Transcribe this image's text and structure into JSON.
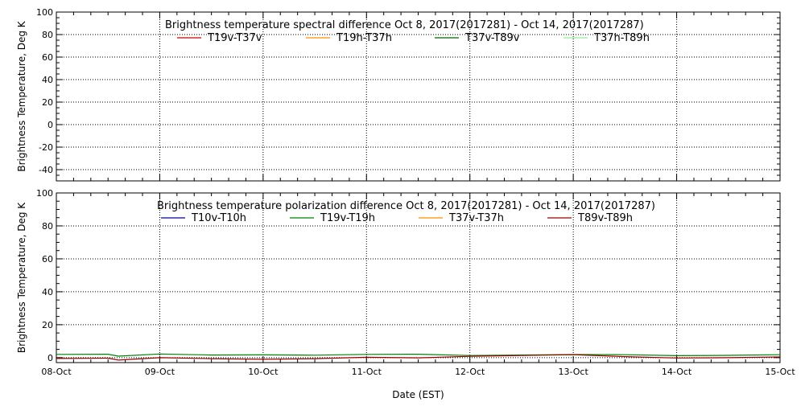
{
  "chart_data": [
    {
      "type": "line",
      "title": "Brightness temperature spectral difference     Oct  8, 2017(2017281) - Oct 14, 2017(2017287)",
      "ylabel": "Brightness Temperature, Deg K",
      "xlabel": "",
      "ylim": [
        -50,
        100
      ],
      "yticks": [
        -40,
        -20,
        0,
        20,
        40,
        60,
        80,
        100
      ],
      "xlim": [
        0,
        7
      ],
      "x_tick_labels": [],
      "grid": true,
      "legend_placement": "top",
      "series": [
        {
          "name": "T19v-T37v",
          "color": "#cc0000",
          "values": []
        },
        {
          "name": "T19h-T37h",
          "color": "#ff8c00",
          "values": []
        },
        {
          "name": "T37v-T89v",
          "color": "#006400",
          "values": []
        },
        {
          "name": "T37h-T89h",
          "color": "#90ee90",
          "values": []
        }
      ]
    },
    {
      "type": "line",
      "title": "Brightness temperature polarization difference     Oct  8, 2017(2017281) - Oct 14, 2017(2017287)",
      "ylabel": "Brightness Temperature, Deg K",
      "xlabel": "Date (EST)",
      "ylim": [
        -3,
        100
      ],
      "yticks": [
        0,
        20,
        40,
        60,
        80,
        100
      ],
      "xlim": [
        0,
        7
      ],
      "x_tick_labels": [
        "08-Oct",
        "09-Oct",
        "10-Oct",
        "11-Oct",
        "12-Oct",
        "13-Oct",
        "14-Oct",
        "15-Oct"
      ],
      "grid": true,
      "legend_placement": "top",
      "series": [
        {
          "name": "T10v-T10h",
          "color": "#000099",
          "x": [],
          "values": []
        },
        {
          "name": "T19v-T19h",
          "color": "#008000",
          "x": [
            0,
            0.5,
            0.6,
            1.0,
            1.5,
            2.0,
            2.5,
            3.0,
            3.5,
            4.0,
            4.5,
            5.0,
            5.5,
            6.0,
            6.5,
            7.0
          ],
          "values": [
            2.0,
            2.1,
            0.9,
            2.2,
            1.6,
            1.7,
            1.5,
            2.0,
            2.1,
            1.3,
            1.6,
            1.9,
            1.8,
            1.2,
            1.4,
            1.8
          ]
        },
        {
          "name": "T37v-T37h",
          "color": "#ff8c00",
          "x": [],
          "values": []
        },
        {
          "name": "T89v-T89h",
          "color": "#990000",
          "x": [
            0,
            0.5,
            0.6,
            1.0,
            1.5,
            2.0,
            2.5,
            3.0,
            3.5,
            4.0,
            4.5,
            5.0,
            5.5,
            6.0,
            6.5,
            7.0
          ],
          "values": [
            -0.5,
            -0.3,
            -1.5,
            0.0,
            -0.6,
            -1.0,
            -0.6,
            0.2,
            -0.1,
            0.8,
            1.3,
            1.8,
            0.6,
            -0.2,
            0.0,
            0.4
          ]
        }
      ]
    }
  ]
}
